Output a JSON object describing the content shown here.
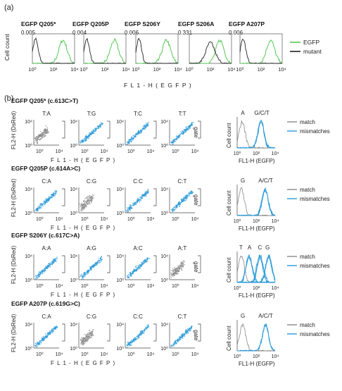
{
  "figure": {
    "panel_a_label": "(a)",
    "panel_b_label": "(b)"
  },
  "colors": {
    "green": "#55c855",
    "blue": "#2a9ad8",
    "gray": "#8a8a8a",
    "black": "#222222"
  },
  "panel_a": {
    "ylabel": "Cell count",
    "xlabel": "F L 1 - H  ( E G F P )",
    "tick_labels": [
      "10⁰",
      "10²",
      "10⁴"
    ],
    "legend": [
      {
        "name": "EGFP",
        "color": "#55c855"
      },
      {
        "name": "mutant",
        "color": "#222222"
      }
    ],
    "plots": [
      {
        "title": "EGFP Q205*",
        "value": "0.005",
        "mutant_peak_log": 0.3
      },
      {
        "title": "EGFP Q205P",
        "value": "0.004",
        "mutant_peak_log": 0.3
      },
      {
        "title": "EGFP S206Y",
        "value": "0.006",
        "mutant_peak_log": 0.3
      },
      {
        "title": "EGFP S206A",
        "value": "0.331",
        "mutant_peak_log": 2.0
      },
      {
        "title": "EGFP A207P",
        "value": "0.006",
        "mutant_peak_log": 0.3
      }
    ]
  },
  "panel_b": {
    "scatter_ylabel": "FL2-H (DsRed)",
    "scatter_xlabel": "F L 1 - H  ( E G F P )",
    "scatter_ytick": "10⁴",
    "tick_labels": [
      "10⁰",
      "10²",
      "10⁴"
    ],
    "gate_label": "gate",
    "hist_ylabel": "Cell count",
    "hist_xlabel": "FL1-H (EGFP)",
    "legend": [
      {
        "name": "match",
        "color": "#8a8a8a"
      },
      {
        "name": "mismatches",
        "color": "#2a9ad8"
      }
    ],
    "rows": [
      {
        "title": "EGFP Q205* (c.613C>T)",
        "combos": [
          {
            "label": "T:A",
            "color": "gray"
          },
          {
            "label": "T:G",
            "color": "blue"
          },
          {
            "label": "T:C",
            "color": "blue"
          },
          {
            "label": "T:T",
            "color": "blue"
          }
        ],
        "hist_labels": [
          {
            "text": "A",
            "log": 0.6
          },
          {
            "text": "G/C/T",
            "log": 2.6
          }
        ],
        "hist_peaks": [
          0.5,
          2.5
        ]
      },
      {
        "title": "EGFP Q205P (c.614A>C)",
        "combos": [
          {
            "label": "C:A",
            "color": "blue"
          },
          {
            "label": "C:G",
            "color": "gray"
          },
          {
            "label": "C:C",
            "color": "blue"
          },
          {
            "label": "C:T",
            "color": "blue"
          }
        ],
        "hist_labels": [
          {
            "text": "G",
            "log": 0.6
          },
          {
            "text": "A/C/T",
            "log": 3.0
          }
        ],
        "hist_peaks": [
          0.5,
          3.0
        ]
      },
      {
        "title": "EGFP S206Y (c.617C>A)",
        "combos": [
          {
            "label": "A:A",
            "color": "blue"
          },
          {
            "label": "A:G",
            "color": "blue"
          },
          {
            "label": "A:C",
            "color": "blue"
          },
          {
            "label": "A:T",
            "color": "gray"
          }
        ],
        "hist_labels": [
          {
            "text": "T",
            "log": 0.4
          },
          {
            "text": "A",
            "log": 1.3
          },
          {
            "text": "C",
            "log": 2.4
          },
          {
            "text": "G",
            "log": 3.2
          }
        ],
        "hist_peaks": [
          0.4,
          1.3,
          2.4,
          3.3
        ]
      },
      {
        "title": "EGFP A207P (c.619G>C)",
        "combos": [
          {
            "label": "C:A",
            "color": "blue"
          },
          {
            "label": "C:G",
            "color": "gray"
          },
          {
            "label": "C:C",
            "color": "blue"
          },
          {
            "label": "C:T",
            "color": "blue"
          }
        ],
        "hist_labels": [
          {
            "text": "G",
            "log": 0.6
          },
          {
            "text": "A/C/T",
            "log": 3.0
          }
        ],
        "hist_peaks": [
          0.5,
          3.0
        ]
      }
    ]
  }
}
